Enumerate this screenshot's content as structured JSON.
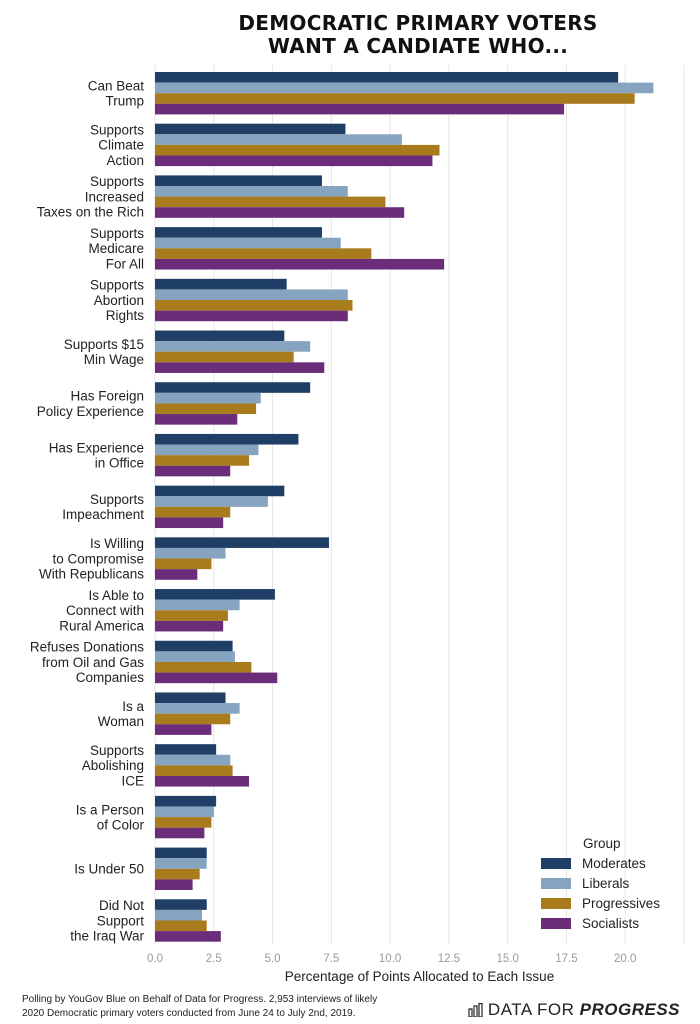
{
  "chart_data": {
    "type": "bar",
    "orientation": "horizontal",
    "title_lines": [
      "DEMOCRATIC PRIMARY VOTERS",
      "WANT A CANDIATE WHO..."
    ],
    "xlabel": "Percentage of Points Allocated to Each Issue",
    "xlim": [
      0,
      22.5
    ],
    "xticks": [
      0,
      2.5,
      5,
      7.5,
      10,
      12.5,
      15,
      17.5,
      20
    ],
    "xtick_labels": [
      "0.0",
      "2.5",
      "5.0",
      "7.5",
      "10.0",
      "12.5",
      "15.0",
      "17.5",
      "20.0"
    ],
    "grid": true,
    "legend": {
      "title": "Group",
      "position": "bottom-right"
    },
    "categories": [
      {
        "key": "can-beat-trump",
        "lines": [
          "Can Beat",
          "Trump"
        ]
      },
      {
        "key": "climate-action",
        "lines": [
          "Supports",
          "Climate",
          "Action"
        ]
      },
      {
        "key": "taxes-on-rich",
        "lines": [
          "Supports",
          "Increased",
          "Taxes on the Rich"
        ]
      },
      {
        "key": "medicare-for-all",
        "lines": [
          "Supports",
          "Medicare",
          "For All"
        ]
      },
      {
        "key": "abortion-rights",
        "lines": [
          "Supports",
          "Abortion",
          "Rights"
        ]
      },
      {
        "key": "min-wage",
        "lines": [
          "Supports $15",
          "Min Wage"
        ]
      },
      {
        "key": "foreign-policy",
        "lines": [
          "Has Foreign",
          "Policy Experience"
        ]
      },
      {
        "key": "experience-in-office",
        "lines": [
          "Has Experience",
          "in Office"
        ]
      },
      {
        "key": "impeachment",
        "lines": [
          "Supports",
          "Impeachment"
        ]
      },
      {
        "key": "compromise-republicans",
        "lines": [
          "Is Willing",
          "to Compromise",
          "With Republicans"
        ]
      },
      {
        "key": "rural-america",
        "lines": [
          "Is Able to",
          "Connect with",
          "Rural America"
        ]
      },
      {
        "key": "refuses-oil-gas",
        "lines": [
          "Refuses Donations",
          "from Oil and Gas",
          "Companies"
        ]
      },
      {
        "key": "is-a-woman",
        "lines": [
          "Is a",
          "Woman"
        ]
      },
      {
        "key": "abolishing-ice",
        "lines": [
          "Supports",
          "Abolishing",
          "ICE"
        ]
      },
      {
        "key": "person-of-color",
        "lines": [
          "Is a Person",
          "of Color"
        ]
      },
      {
        "key": "under-50",
        "lines": [
          "Is Under 50"
        ]
      },
      {
        "key": "iraq-war",
        "lines": [
          "Did Not",
          "Support",
          "the Iraq War"
        ]
      }
    ],
    "series": [
      {
        "name": "Moderates",
        "color": "#1f3f66",
        "values": [
          19.7,
          8.1,
          7.1,
          7.1,
          5.6,
          5.5,
          6.6,
          6.1,
          5.5,
          7.4,
          5.1,
          3.3,
          3.0,
          2.6,
          2.6,
          2.2,
          2.2
        ]
      },
      {
        "name": "Liberals",
        "color": "#86a4bf",
        "values": [
          21.2,
          10.5,
          8.2,
          7.9,
          8.2,
          6.6,
          4.5,
          4.4,
          4.8,
          3.0,
          3.6,
          3.4,
          3.6,
          3.2,
          2.5,
          2.2,
          2.0
        ]
      },
      {
        "name": "Progressives",
        "color": "#a87b1d",
        "values": [
          20.4,
          12.1,
          9.8,
          9.2,
          8.4,
          5.9,
          4.3,
          4.0,
          3.2,
          2.4,
          3.1,
          4.1,
          3.2,
          3.3,
          2.4,
          1.9,
          2.2
        ]
      },
      {
        "name": "Socialists",
        "color": "#6b2d7a",
        "values": [
          17.4,
          11.8,
          10.6,
          12.3,
          8.2,
          7.2,
          3.5,
          3.2,
          2.9,
          1.8,
          2.9,
          5.2,
          2.4,
          4.0,
          2.1,
          1.6,
          2.8
        ]
      }
    ]
  },
  "footnote": {
    "line1": "Polling by YouGov Blue on Behalf of Data for Progress. 2,953 interviews of likely",
    "line2": "2020 Democratic primary voters conducted from June 24 to July 2nd, 2019."
  },
  "brand": {
    "regular": "DATA FOR ",
    "bold": "PROGRESS"
  }
}
